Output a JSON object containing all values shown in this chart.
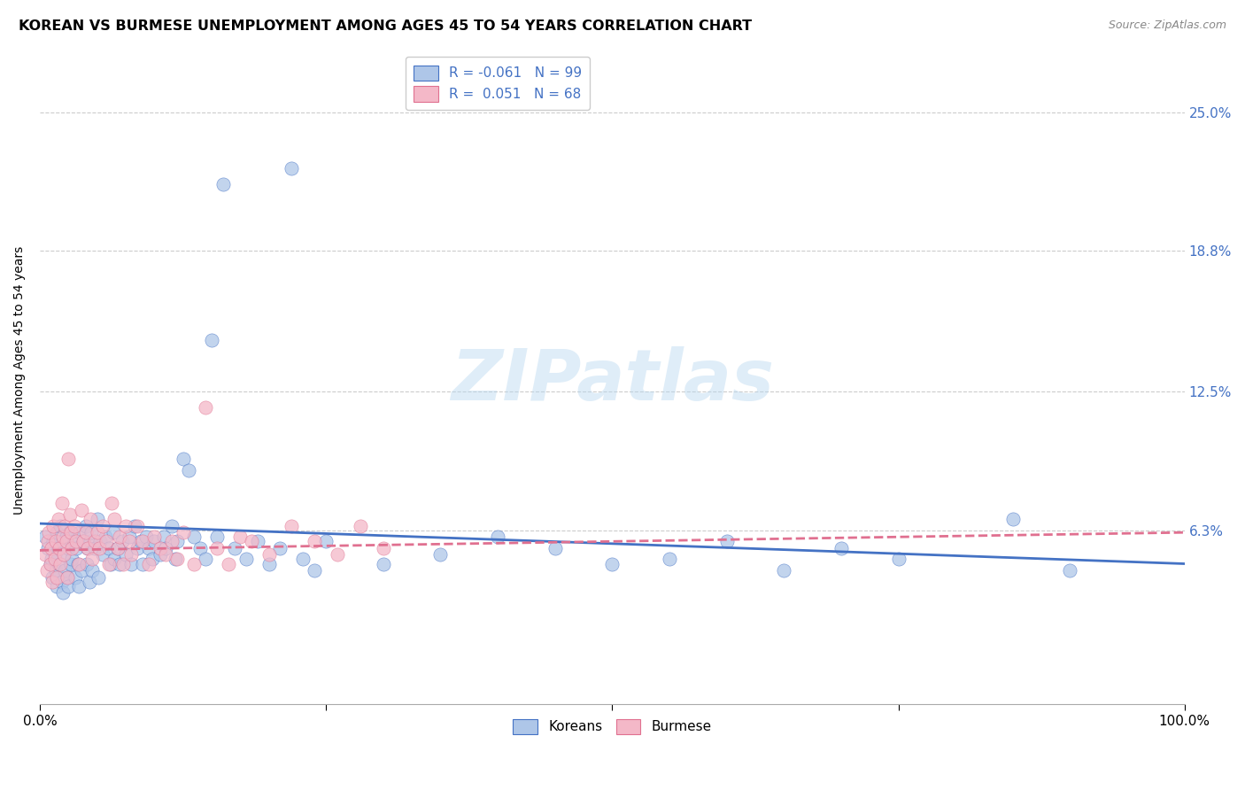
{
  "title": "KOREAN VS BURMESE UNEMPLOYMENT AMONG AGES 45 TO 54 YEARS CORRELATION CHART",
  "source": "Source: ZipAtlas.com",
  "ylabel": "Unemployment Among Ages 45 to 54 years",
  "ytick_labels": [
    "25.0%",
    "18.8%",
    "12.5%",
    "6.3%"
  ],
  "ytick_values": [
    0.25,
    0.188,
    0.125,
    0.063
  ],
  "xlim": [
    0.0,
    1.0
  ],
  "ylim": [
    -0.015,
    0.275
  ],
  "korean_color": "#aec6e8",
  "burmese_color": "#f4b8c8",
  "korean_line_color": "#4472c4",
  "burmese_line_color": "#e07090",
  "legend_korean": "R = -0.061   N = 99",
  "legend_burmese": "R =  0.051   N = 68",
  "watermark": "ZIPatlas",
  "background_color": "#ffffff",
  "grid_color": "#cccccc",
  "title_fontsize": 11.5,
  "label_fontsize": 10,
  "tick_fontsize": 10,
  "korean_x": [
    0.005,
    0.007,
    0.009,
    0.01,
    0.011,
    0.012,
    0.013,
    0.014,
    0.015,
    0.015,
    0.016,
    0.017,
    0.018,
    0.019,
    0.02,
    0.02,
    0.021,
    0.022,
    0.023,
    0.024,
    0.025,
    0.025,
    0.026,
    0.027,
    0.028,
    0.03,
    0.031,
    0.032,
    0.033,
    0.034,
    0.035,
    0.036,
    0.038,
    0.04,
    0.041,
    0.042,
    0.043,
    0.044,
    0.045,
    0.046,
    0.048,
    0.05,
    0.051,
    0.053,
    0.055,
    0.057,
    0.06,
    0.062,
    0.064,
    0.065,
    0.068,
    0.07,
    0.072,
    0.075,
    0.078,
    0.08,
    0.083,
    0.085,
    0.088,
    0.09,
    0.093,
    0.095,
    0.098,
    0.1,
    0.105,
    0.108,
    0.11,
    0.115,
    0.118,
    0.12,
    0.125,
    0.13,
    0.135,
    0.14,
    0.145,
    0.15,
    0.155,
    0.16,
    0.17,
    0.18,
    0.19,
    0.2,
    0.21,
    0.22,
    0.23,
    0.24,
    0.25,
    0.3,
    0.35,
    0.4,
    0.45,
    0.5,
    0.55,
    0.6,
    0.65,
    0.7,
    0.75,
    0.85,
    0.9
  ],
  "korean_y": [
    0.06,
    0.055,
    0.048,
    0.05,
    0.042,
    0.058,
    0.052,
    0.045,
    0.062,
    0.038,
    0.055,
    0.048,
    0.065,
    0.04,
    0.058,
    0.035,
    0.052,
    0.045,
    0.06,
    0.042,
    0.055,
    0.038,
    0.062,
    0.048,
    0.05,
    0.058,
    0.042,
    0.055,
    0.048,
    0.038,
    0.062,
    0.045,
    0.058,
    0.065,
    0.048,
    0.055,
    0.04,
    0.058,
    0.062,
    0.045,
    0.055,
    0.068,
    0.042,
    0.058,
    0.052,
    0.06,
    0.055,
    0.048,
    0.062,
    0.05,
    0.055,
    0.048,
    0.058,
    0.052,
    0.06,
    0.048,
    0.065,
    0.055,
    0.058,
    0.048,
    0.06,
    0.055,
    0.05,
    0.058,
    0.052,
    0.06,
    0.055,
    0.065,
    0.05,
    0.058,
    0.095,
    0.09,
    0.06,
    0.055,
    0.05,
    0.148,
    0.06,
    0.218,
    0.055,
    0.05,
    0.058,
    0.048,
    0.055,
    0.225,
    0.05,
    0.045,
    0.058,
    0.048,
    0.052,
    0.06,
    0.055,
    0.048,
    0.05,
    0.058,
    0.045,
    0.055,
    0.05,
    0.068,
    0.045
  ],
  "burmese_x": [
    0.005,
    0.006,
    0.007,
    0.008,
    0.009,
    0.01,
    0.011,
    0.012,
    0.013,
    0.014,
    0.015,
    0.016,
    0.017,
    0.018,
    0.019,
    0.02,
    0.021,
    0.022,
    0.023,
    0.024,
    0.025,
    0.026,
    0.027,
    0.028,
    0.03,
    0.032,
    0.034,
    0.036,
    0.038,
    0.04,
    0.042,
    0.044,
    0.046,
    0.048,
    0.05,
    0.052,
    0.055,
    0.058,
    0.06,
    0.063,
    0.065,
    0.068,
    0.07,
    0.073,
    0.075,
    0.078,
    0.08,
    0.085,
    0.09,
    0.095,
    0.1,
    0.105,
    0.11,
    0.115,
    0.12,
    0.125,
    0.135,
    0.145,
    0.155,
    0.165,
    0.175,
    0.185,
    0.2,
    0.22,
    0.24,
    0.26,
    0.28,
    0.3
  ],
  "burmese_y": [
    0.052,
    0.045,
    0.058,
    0.062,
    0.048,
    0.055,
    0.04,
    0.065,
    0.05,
    0.058,
    0.042,
    0.068,
    0.055,
    0.048,
    0.075,
    0.06,
    0.052,
    0.065,
    0.058,
    0.042,
    0.095,
    0.07,
    0.062,
    0.055,
    0.065,
    0.058,
    0.048,
    0.072,
    0.058,
    0.062,
    0.055,
    0.068,
    0.05,
    0.058,
    0.062,
    0.055,
    0.065,
    0.058,
    0.048,
    0.075,
    0.068,
    0.055,
    0.06,
    0.048,
    0.065,
    0.058,
    0.052,
    0.065,
    0.058,
    0.048,
    0.06,
    0.055,
    0.052,
    0.058,
    0.05,
    0.062,
    0.048,
    0.118,
    0.055,
    0.048,
    0.06,
    0.058,
    0.052,
    0.065,
    0.058,
    0.052,
    0.065,
    0.055
  ]
}
